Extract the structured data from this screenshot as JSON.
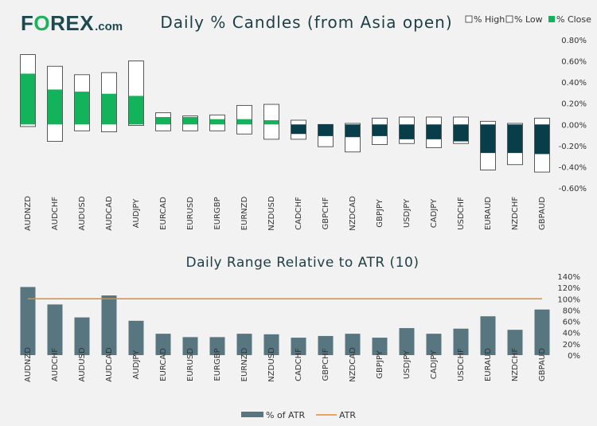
{
  "brand": {
    "name_part1": "F",
    "name_o": "O",
    "name_part2": "REX",
    "domain": ".com"
  },
  "colors": {
    "positive": "#12b35a",
    "negative": "#083d4a",
    "box_border": "#333333",
    "atr_bar": "#577680",
    "atr_line": "#e38a2a",
    "title": "#1e3e45"
  },
  "chart_data": [
    {
      "type": "bar",
      "title": "Daily % Candles (from Asia open)",
      "legend": {
        "position": "top-right",
        "items": [
          "% High",
          "% Low",
          "% Close"
        ]
      },
      "categories": [
        "AUDNZD",
        "AUDCHF",
        "AUDUSD",
        "AUDCAD",
        "AUDJPY",
        "EURCAD",
        "EURUSD",
        "EURGBP",
        "EURNZD",
        "NZDUSD",
        "CADCHF",
        "GBPCHF",
        "NZDCAD",
        "GBPJPY",
        "USDJPY",
        "CADJPY",
        "USDCHF",
        "EURAUD",
        "NZDCHF",
        "GBPAUD"
      ],
      "series": [
        {
          "name": "% High",
          "values": [
            0.66,
            0.55,
            0.47,
            0.49,
            0.6,
            0.11,
            0.08,
            0.09,
            0.18,
            0.19,
            0.04,
            0.0,
            0.01,
            0.06,
            0.07,
            0.07,
            0.07,
            0.03,
            0.01,
            0.06
          ]
        },
        {
          "name": "% Low",
          "values": [
            -0.02,
            -0.16,
            -0.06,
            -0.07,
            -0.01,
            -0.06,
            -0.06,
            -0.06,
            -0.09,
            -0.14,
            -0.14,
            -0.21,
            -0.26,
            -0.19,
            -0.18,
            -0.22,
            -0.18,
            -0.43,
            -0.38,
            -0.45
          ]
        },
        {
          "name": "% Close",
          "values": [
            0.48,
            0.33,
            0.31,
            0.29,
            0.27,
            0.07,
            0.07,
            0.05,
            0.05,
            0.04,
            -0.09,
            -0.11,
            -0.12,
            -0.11,
            -0.14,
            -0.14,
            -0.16,
            -0.27,
            -0.27,
            -0.28
          ]
        }
      ],
      "ylim": [
        -0.6,
        0.8
      ],
      "yticks": [
        "0.80%",
        "0.60%",
        "0.40%",
        "0.20%",
        "0.00%",
        "-0.20%",
        "-0.40%",
        "-0.60%"
      ],
      "ytick_values": [
        0.8,
        0.6,
        0.4,
        0.2,
        0,
        -0.2,
        -0.4,
        -0.6
      ],
      "grid": false
    },
    {
      "type": "bar",
      "title": "Daily Range Relative to ATR (10)",
      "legend": {
        "position": "bottom-center",
        "items": [
          "% of ATR",
          "ATR"
        ]
      },
      "categories": [
        "AUDNZD",
        "AUDCHF",
        "AUDUSD",
        "AUDCAD",
        "AUDJPY",
        "EURCAD",
        "EURUSD",
        "EURGBP",
        "EURNZD",
        "NZDUSD",
        "CADCHF",
        "GBPCHF",
        "NZDCAD",
        "GBPJPY",
        "USDJPY",
        "CADJPY",
        "USDCHF",
        "EURAUD",
        "NZDCHF",
        "GBPAUD"
      ],
      "series": [
        {
          "name": "% of ATR",
          "values": [
            121,
            90,
            67,
            106,
            61,
            38,
            32,
            32,
            38,
            37,
            31,
            34,
            38,
            31,
            48,
            38,
            47,
            69,
            45,
            81
          ]
        },
        {
          "name": "ATR",
          "value": 100
        }
      ],
      "ylim": [
        0,
        140
      ],
      "yticks": [
        "140%",
        "120%",
        "100%",
        "80%",
        "60%",
        "40%",
        "20%",
        "0%"
      ],
      "ytick_values": [
        140,
        120,
        100,
        80,
        60,
        40,
        20,
        0
      ],
      "grid": false
    }
  ]
}
